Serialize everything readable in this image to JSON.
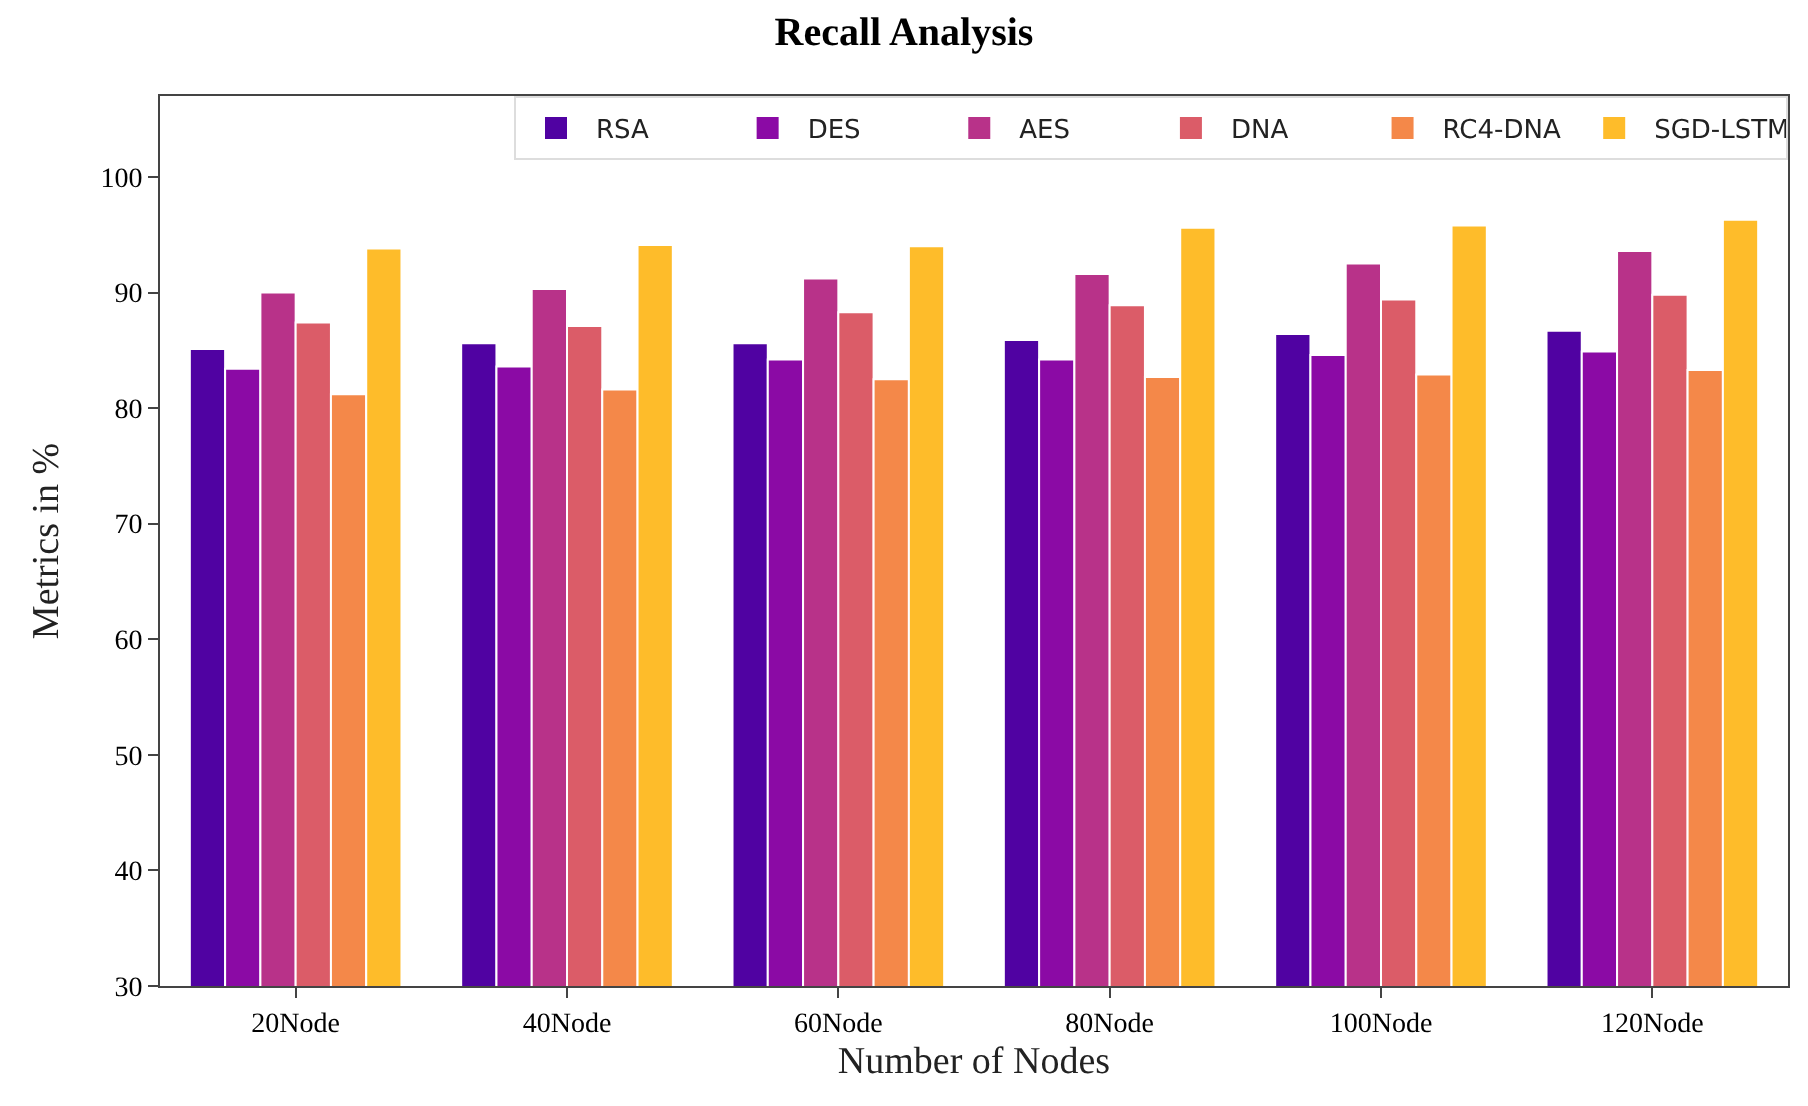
{
  "chart_data": {
    "type": "bar",
    "title": "Recall Analysis",
    "xlabel": "Number of Nodes",
    "ylabel": "Metrics in %",
    "categories": [
      "20Node",
      "40Node",
      "60Node",
      "80Node",
      "100Node",
      "120Node"
    ],
    "series": [
      {
        "name": "RSA",
        "color": "#5002a2",
        "values": [
          85.1,
          85.6,
          85.6,
          85.9,
          86.4,
          86.7
        ]
      },
      {
        "name": "DES",
        "color": "#8b0aa5",
        "values": [
          83.4,
          83.6,
          84.2,
          84.2,
          84.6,
          84.9
        ]
      },
      {
        "name": "AES",
        "color": "#b83289",
        "values": [
          90.0,
          90.3,
          91.2,
          91.6,
          92.5,
          93.6
        ]
      },
      {
        "name": "DNA",
        "color": "#db5c68",
        "values": [
          87.4,
          87.1,
          88.3,
          88.9,
          89.4,
          89.8
        ]
      },
      {
        "name": "RC4-DNA",
        "color": "#f48849",
        "values": [
          81.2,
          81.6,
          82.5,
          82.7,
          82.9,
          83.3
        ]
      },
      {
        "name": "SGD-LSTM",
        "color": "#febc2a",
        "values": [
          93.8,
          94.1,
          94.0,
          95.6,
          95.8,
          96.3
        ]
      }
    ],
    "ylim": [
      30,
      107
    ],
    "yticks": [
      30,
      40,
      50,
      60,
      70,
      80,
      90,
      100
    ],
    "legend": "top right"
  }
}
